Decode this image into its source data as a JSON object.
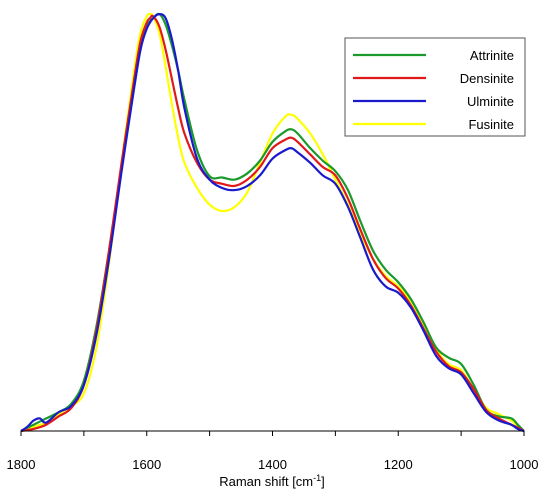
{
  "chart_data": {
    "type": "line",
    "xlabel_main": "Raman shift [cm",
    "xlabel_sup": "-1",
    "xlabel_close": "]",
    "xlim": [
      1800,
      1000
    ],
    "ylim": [
      0,
      1.0
    ],
    "x_ticks": [
      1800,
      1600,
      1400,
      1200,
      1000
    ],
    "x_tick_labels": [
      "1800",
      "1600",
      "1400",
      "1200",
      "1000"
    ],
    "grid": false,
    "legend_position": "top-right",
    "series": [
      {
        "name": "Attrinite",
        "color": "#1a9a2a",
        "points": [
          [
            1800,
            0.0
          ],
          [
            1780,
            0.015
          ],
          [
            1760,
            0.03
          ],
          [
            1740,
            0.045
          ],
          [
            1720,
            0.065
          ],
          [
            1700,
            0.12
          ],
          [
            1680,
            0.25
          ],
          [
            1660,
            0.43
          ],
          [
            1640,
            0.63
          ],
          [
            1620,
            0.82
          ],
          [
            1610,
            0.91
          ],
          [
            1600,
            0.965
          ],
          [
            1590,
            0.985
          ],
          [
            1580,
            0.995
          ],
          [
            1570,
            0.97
          ],
          [
            1560,
            0.92
          ],
          [
            1550,
            0.86
          ],
          [
            1540,
            0.79
          ],
          [
            1520,
            0.67
          ],
          [
            1500,
            0.608
          ],
          [
            1480,
            0.605
          ],
          [
            1460,
            0.6
          ],
          [
            1440,
            0.615
          ],
          [
            1420,
            0.645
          ],
          [
            1400,
            0.69
          ],
          [
            1380,
            0.715
          ],
          [
            1370,
            0.72
          ],
          [
            1360,
            0.71
          ],
          [
            1340,
            0.675
          ],
          [
            1320,
            0.645
          ],
          [
            1300,
            0.62
          ],
          [
            1280,
            0.575
          ],
          [
            1260,
            0.5
          ],
          [
            1240,
            0.43
          ],
          [
            1220,
            0.385
          ],
          [
            1200,
            0.355
          ],
          [
            1180,
            0.315
          ],
          [
            1160,
            0.26
          ],
          [
            1140,
            0.2
          ],
          [
            1120,
            0.175
          ],
          [
            1100,
            0.16
          ],
          [
            1080,
            0.11
          ],
          [
            1060,
            0.05
          ],
          [
            1040,
            0.035
          ],
          [
            1020,
            0.03
          ],
          [
            1010,
            0.015
          ],
          [
            1000,
            0.0
          ]
        ]
      },
      {
        "name": "Densinite",
        "color": "#e01a1a",
        "points": [
          [
            1800,
            0.0
          ],
          [
            1780,
            0.005
          ],
          [
            1760,
            0.015
          ],
          [
            1740,
            0.035
          ],
          [
            1720,
            0.055
          ],
          [
            1700,
            0.11
          ],
          [
            1680,
            0.24
          ],
          [
            1660,
            0.43
          ],
          [
            1640,
            0.64
          ],
          [
            1620,
            0.84
          ],
          [
            1610,
            0.93
          ],
          [
            1600,
            0.975
          ],
          [
            1595,
            0.985
          ],
          [
            1590,
            0.99
          ],
          [
            1580,
            0.965
          ],
          [
            1570,
            0.91
          ],
          [
            1560,
            0.84
          ],
          [
            1550,
            0.77
          ],
          [
            1540,
            0.71
          ],
          [
            1520,
            0.64
          ],
          [
            1500,
            0.6
          ],
          [
            1480,
            0.59
          ],
          [
            1460,
            0.585
          ],
          [
            1440,
            0.6
          ],
          [
            1420,
            0.63
          ],
          [
            1400,
            0.675
          ],
          [
            1380,
            0.695
          ],
          [
            1370,
            0.7
          ],
          [
            1360,
            0.69
          ],
          [
            1340,
            0.66
          ],
          [
            1320,
            0.63
          ],
          [
            1300,
            0.61
          ],
          [
            1280,
            0.555
          ],
          [
            1260,
            0.48
          ],
          [
            1240,
            0.41
          ],
          [
            1220,
            0.365
          ],
          [
            1200,
            0.34
          ],
          [
            1180,
            0.3
          ],
          [
            1160,
            0.245
          ],
          [
            1140,
            0.19
          ],
          [
            1120,
            0.155
          ],
          [
            1100,
            0.14
          ],
          [
            1080,
            0.1
          ],
          [
            1060,
            0.05
          ],
          [
            1040,
            0.03
          ],
          [
            1020,
            0.015
          ],
          [
            1010,
            0.008
          ],
          [
            1000,
            0.0
          ]
        ]
      },
      {
        "name": "Ulminite",
        "color": "#1a1acc",
        "points": [
          [
            1800,
            0.0
          ],
          [
            1790,
            0.01
          ],
          [
            1780,
            0.025
          ],
          [
            1770,
            0.03
          ],
          [
            1760,
            0.02
          ],
          [
            1740,
            0.045
          ],
          [
            1720,
            0.06
          ],
          [
            1700,
            0.11
          ],
          [
            1680,
            0.23
          ],
          [
            1660,
            0.41
          ],
          [
            1640,
            0.62
          ],
          [
            1620,
            0.82
          ],
          [
            1610,
            0.91
          ],
          [
            1600,
            0.96
          ],
          [
            1590,
            0.985
          ],
          [
            1580,
            0.995
          ],
          [
            1570,
            0.985
          ],
          [
            1560,
            0.935
          ],
          [
            1550,
            0.86
          ],
          [
            1540,
            0.77
          ],
          [
            1520,
            0.65
          ],
          [
            1500,
            0.6
          ],
          [
            1480,
            0.58
          ],
          [
            1460,
            0.575
          ],
          [
            1440,
            0.585
          ],
          [
            1420,
            0.61
          ],
          [
            1400,
            0.65
          ],
          [
            1380,
            0.67
          ],
          [
            1370,
            0.675
          ],
          [
            1360,
            0.665
          ],
          [
            1340,
            0.64
          ],
          [
            1320,
            0.61
          ],
          [
            1300,
            0.59
          ],
          [
            1280,
            0.535
          ],
          [
            1260,
            0.46
          ],
          [
            1240,
            0.385
          ],
          [
            1220,
            0.345
          ],
          [
            1200,
            0.33
          ],
          [
            1180,
            0.295
          ],
          [
            1160,
            0.24
          ],
          [
            1140,
            0.18
          ],
          [
            1120,
            0.15
          ],
          [
            1100,
            0.135
          ],
          [
            1080,
            0.09
          ],
          [
            1060,
            0.045
          ],
          [
            1040,
            0.025
          ],
          [
            1020,
            0.015
          ],
          [
            1010,
            0.005
          ],
          [
            1000,
            0.0
          ]
        ]
      },
      {
        "name": "Fusinite",
        "color": "#ffff00",
        "points": [
          [
            1800,
            0.0
          ],
          [
            1780,
            0.01
          ],
          [
            1760,
            0.02
          ],
          [
            1740,
            0.04
          ],
          [
            1720,
            0.06
          ],
          [
            1700,
            0.09
          ],
          [
            1680,
            0.2
          ],
          [
            1660,
            0.4
          ],
          [
            1640,
            0.64
          ],
          [
            1620,
            0.86
          ],
          [
            1610,
            0.95
          ],
          [
            1600,
            0.99
          ],
          [
            1595,
            0.995
          ],
          [
            1590,
            0.99
          ],
          [
            1580,
            0.95
          ],
          [
            1570,
            0.87
          ],
          [
            1560,
            0.78
          ],
          [
            1550,
            0.7
          ],
          [
            1540,
            0.64
          ],
          [
            1520,
            0.58
          ],
          [
            1500,
            0.54
          ],
          [
            1480,
            0.525
          ],
          [
            1460,
            0.535
          ],
          [
            1440,
            0.57
          ],
          [
            1420,
            0.64
          ],
          [
            1400,
            0.71
          ],
          [
            1380,
            0.75
          ],
          [
            1370,
            0.755
          ],
          [
            1360,
            0.745
          ],
          [
            1340,
            0.71
          ],
          [
            1320,
            0.66
          ],
          [
            1300,
            0.6
          ],
          [
            1280,
            0.54
          ],
          [
            1260,
            0.47
          ],
          [
            1240,
            0.41
          ],
          [
            1220,
            0.37
          ],
          [
            1200,
            0.345
          ],
          [
            1180,
            0.31
          ],
          [
            1160,
            0.255
          ],
          [
            1140,
            0.195
          ],
          [
            1120,
            0.16
          ],
          [
            1100,
            0.145
          ],
          [
            1080,
            0.1
          ],
          [
            1060,
            0.055
          ],
          [
            1040,
            0.04
          ],
          [
            1020,
            0.025
          ],
          [
            1010,
            0.01
          ],
          [
            1000,
            0.0
          ]
        ]
      }
    ]
  }
}
